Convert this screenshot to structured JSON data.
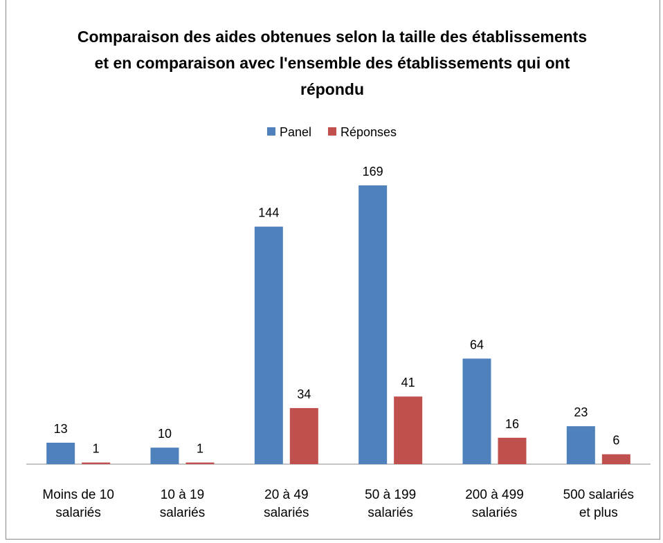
{
  "chart_data": {
    "type": "bar",
    "title": "Comparaison des aides obtenues selon la taille des établissements et en comparaison avec l'ensemble des établissements qui ont répondu",
    "categories": [
      "Moins de 10\nsalariés",
      "10 à 19\nsalariés",
      "20 à 49\nsalariés",
      "50 à 199\nsalariés",
      "200 à 499\nsalariés",
      "500 salariés\net plus"
    ],
    "series": [
      {
        "name": "Panel",
        "color": "#4f81bd",
        "values": [
          13,
          10,
          144,
          169,
          64,
          23
        ]
      },
      {
        "name": "Réponses",
        "color": "#c0504d",
        "values": [
          1,
          1,
          34,
          41,
          16,
          6
        ]
      }
    ],
    "legend": "top"
  }
}
